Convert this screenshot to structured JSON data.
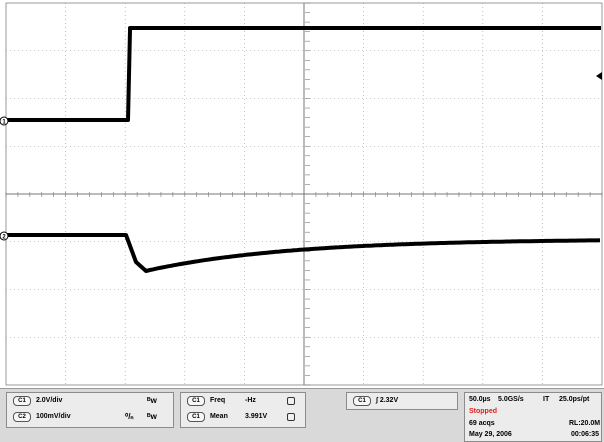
{
  "channels": {
    "c1": {
      "label": "C1",
      "scale": "2.0V/div",
      "marker": "1"
    },
    "c2": {
      "label": "C2",
      "scale": "100mV/div",
      "marker": "2"
    }
  },
  "measurements": {
    "freq": {
      "source": "C1",
      "name": "Freq",
      "value": "-Hz"
    },
    "mean": {
      "source": "C1",
      "name": "Mean",
      "value": "3.991V"
    }
  },
  "trigger": {
    "source": "C1",
    "level": "2.32V"
  },
  "timebase": {
    "horizontal": "50.0µs",
    "sample_rate": "5.0GS/s",
    "mode": "IT",
    "resolution": "25.0ps/pt"
  },
  "acquisition": {
    "status": "Stopped",
    "acqs": "69 acqs",
    "record_length": "RL:20.0M",
    "date": "May 29, 2006",
    "time": "00:06:35"
  },
  "colors": {
    "status": "#e0201b",
    "trace": "#000000",
    "grid": "#9a9a9a"
  }
}
